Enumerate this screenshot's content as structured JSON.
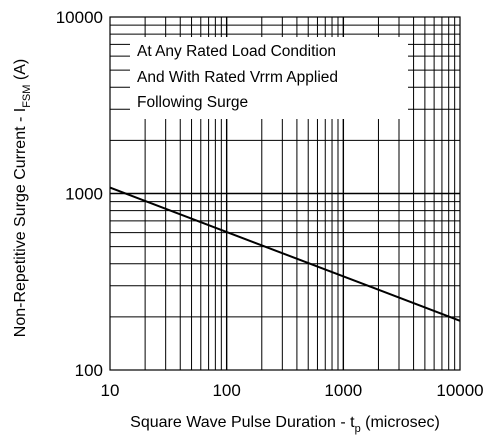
{
  "chart_data": {
    "type": "line",
    "x_scale": "log",
    "y_scale": "log",
    "xlim": [
      10,
      10000
    ],
    "ylim": [
      100,
      10000
    ],
    "x_ticks": [
      {
        "value": 10,
        "label": "10"
      },
      {
        "value": 100,
        "label": "100"
      },
      {
        "value": 1000,
        "label": "1000"
      },
      {
        "value": 10000,
        "label": "10000"
      }
    ],
    "y_ticks": [
      {
        "value": 100,
        "label": "100"
      },
      {
        "value": 1000,
        "label": "1000"
      },
      {
        "value": 10000,
        "label": "10000"
      }
    ],
    "xlabel": {
      "main": "Square Wave Pulse Duration - t",
      "sub": "p",
      "suffix": " (microsec)"
    },
    "ylabel": {
      "main": "Non-Repetitive Surge Current - I",
      "sub": "FSM",
      "suffix": " (A)"
    },
    "annotations": [
      "At Any Rated Load Condition",
      "And With Rated Vrrm Applied",
      "Following Surge"
    ],
    "grid": true,
    "series": [
      {
        "x": [
          10,
          10000
        ],
        "y": [
          1080,
          190
        ]
      }
    ],
    "colors": {
      "line": "#000000",
      "grid": "#000000",
      "background": "#ffffff"
    }
  }
}
